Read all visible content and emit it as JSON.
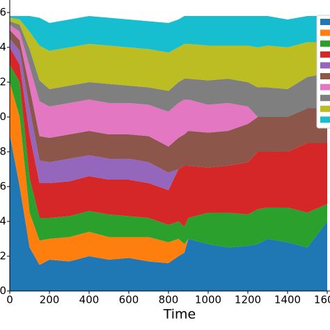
{
  "chart_data": {
    "type": "stacked_area",
    "x_label": "Time",
    "x": [
      0,
      50,
      100,
      150,
      200,
      300,
      400,
      500,
      600,
      700,
      800,
      850,
      880,
      900,
      1000,
      1100,
      1200,
      1250,
      1300,
      1400,
      1500,
      1600
    ],
    "series": [
      {
        "color": "#1f77b4",
        "values": [
          0.9,
          0.6,
          0.25,
          0.15,
          0.18,
          0.17,
          0.2,
          0.18,
          0.19,
          0.17,
          0.16,
          0.2,
          0.22,
          0.3,
          0.27,
          0.25,
          0.26,
          0.27,
          0.3,
          0.28,
          0.25,
          0.4
        ]
      },
      {
        "color": "#ff7f0e",
        "values": [
          0.3,
          0.4,
          0.2,
          0.14,
          0.12,
          0.14,
          0.14,
          0.13,
          0.12,
          0.14,
          0.12,
          0.1,
          0.05,
          0,
          0,
          0,
          0,
          0,
          0,
          0,
          0,
          0
        ]
      },
      {
        "color": "#2ca02c",
        "values": [
          0.1,
          0.2,
          0.2,
          0.13,
          0.12,
          0.12,
          0.12,
          0.13,
          0.12,
          0.11,
          0.1,
          0.1,
          0.1,
          0.12,
          0.18,
          0.2,
          0.18,
          0.2,
          0.18,
          0.2,
          0.2,
          0.1
        ]
      },
      {
        "color": "#d62728",
        "values": [
          0.1,
          0.1,
          0.25,
          0.2,
          0.2,
          0.2,
          0.2,
          0.2,
          0.21,
          0.2,
          0.2,
          0.3,
          0.35,
          0.3,
          0.26,
          0.27,
          0.3,
          0.33,
          0.32,
          0.32,
          0.4,
          0.35
        ]
      },
      {
        "color": "#9467bd",
        "values": [
          0.05,
          0.08,
          0.15,
          0.13,
          0.12,
          0.13,
          0.12,
          0.12,
          0.12,
          0.12,
          0.1,
          0,
          0,
          0,
          0,
          0,
          0,
          0,
          0,
          0,
          0,
          0
        ]
      },
      {
        "color": "#8c564b",
        "values": [
          0.05,
          0.06,
          0.12,
          0.14,
          0.14,
          0.14,
          0.14,
          0.14,
          0.14,
          0.15,
          0.15,
          0.18,
          0.18,
          0.2,
          0.2,
          0.2,
          0.22,
          0.2,
          0.2,
          0.2,
          0.2,
          0.2
        ]
      },
      {
        "color": "#e377c2",
        "values": [
          0.03,
          0.05,
          0.12,
          0.2,
          0.18,
          0.18,
          0.18,
          0.18,
          0.18,
          0.18,
          0.2,
          0.2,
          0.2,
          0.18,
          0.16,
          0.16,
          0.1,
          0,
          0,
          0,
          0,
          0
        ]
      },
      {
        "color": "#7f7f7f",
        "values": [
          0.02,
          0.04,
          0.1,
          0.12,
          0.1,
          0.1,
          0.1,
          0.11,
          0.1,
          0.1,
          0.12,
          0.12,
          0.12,
          0.12,
          0.14,
          0.14,
          0.14,
          0.17,
          0.17,
          0.16,
          0.18,
          0.2
        ]
      },
      {
        "color": "#bcbd22",
        "values": [
          0.02,
          0.03,
          0.1,
          0.2,
          0.22,
          0.22,
          0.22,
          0.22,
          0.22,
          0.22,
          0.22,
          0.2,
          0.2,
          0.2,
          0.2,
          0.19,
          0.21,
          0.23,
          0.24,
          0.24,
          0.2,
          0.18
        ]
      },
      {
        "color": "#17becf",
        "values": [
          0.01,
          0.02,
          0.09,
          0.16,
          0.16,
          0.16,
          0.16,
          0.16,
          0.16,
          0.16,
          0.17,
          0.16,
          0.16,
          0.16,
          0.17,
          0.17,
          0.17,
          0.18,
          0.17,
          0.16,
          0.15,
          0.15
        ]
      }
    ],
    "xlim": [
      0,
      1620
    ],
    "xticks": [
      0,
      200,
      400,
      600,
      800,
      1000,
      1200,
      1400,
      1600
    ],
    "ylim": [
      0,
      1.6
    ],
    "yticks": [
      0,
      {
        "value": 0.2,
        "label": "2"
      },
      {
        "value": 0.4,
        "label": "4"
      },
      {
        "value": 0.6,
        "label": "6"
      },
      {
        "value": 0.8,
        "label": "8"
      },
      {
        "value": 1.0,
        "label": "0"
      },
      {
        "value": 1.2,
        "label": "2"
      },
      {
        "value": 1.4,
        "label": "4"
      },
      {
        "value": 1.6,
        "label": "6"
      }
    ],
    "legend": "upper right"
  }
}
